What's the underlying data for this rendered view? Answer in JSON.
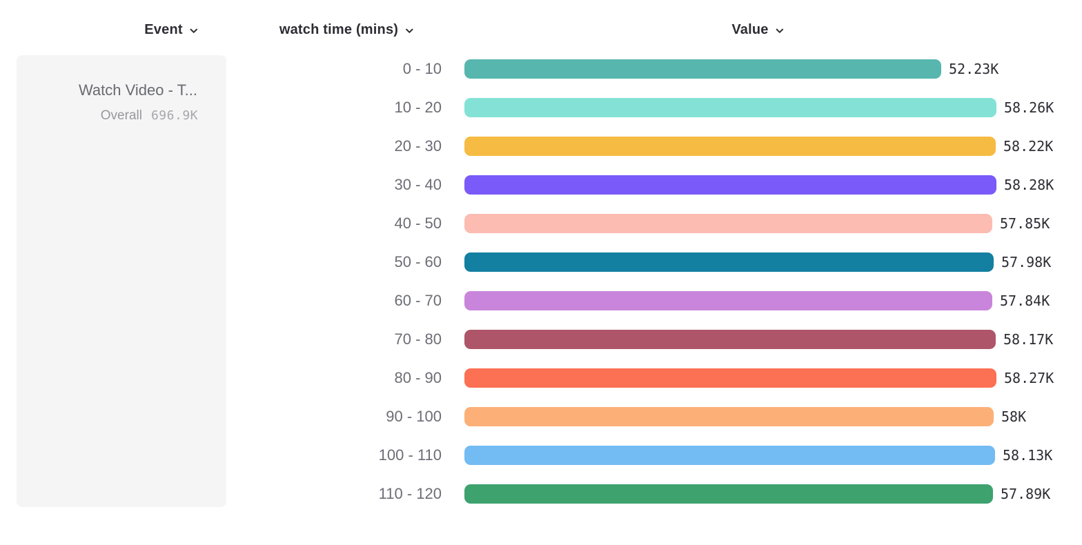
{
  "header": {
    "event": {
      "label": "Event"
    },
    "breakdown": {
      "label": "watch time (mins)"
    },
    "value": {
      "label": "Value"
    }
  },
  "legend": {
    "event_title": "Watch Video - T...",
    "overall_label": "Overall",
    "overall_value": "696.9K"
  },
  "chart_data": {
    "type": "bar",
    "orientation": "horizontal",
    "title": "",
    "xlabel": "Value",
    "ylabel": "watch time (mins)",
    "xlim": [
      0,
      58280
    ],
    "grid": false,
    "legend_position": "left",
    "categories": [
      "0 - 10",
      "10 - 20",
      "20 - 30",
      "30 - 40",
      "40 - 50",
      "50 - 60",
      "60 - 70",
      "70 - 80",
      "80 - 90",
      "90 - 100",
      "100 - 110",
      "110 - 120"
    ],
    "values": [
      52230,
      58260,
      58220,
      58280,
      57850,
      57980,
      57840,
      58170,
      58270,
      58000,
      58130,
      57890
    ],
    "value_labels": [
      "52.23K",
      "58.26K",
      "58.22K",
      "58.28K",
      "57.85K",
      "57.98K",
      "57.84K",
      "58.17K",
      "58.27K",
      "58K",
      "58.13K",
      "57.89K"
    ],
    "colors": [
      "#57B6AE",
      "#83E2D5",
      "#F6BB42",
      "#7A5AF8",
      "#FCBCB1",
      "#137FA1",
      "#C985DB",
      "#AF5569",
      "#FC7053",
      "#FCB078",
      "#72BBF3",
      "#3EA26F"
    ]
  },
  "colors": {
    "header_text": "#2C2C33",
    "category_text": "#6C6C75",
    "value_text": "#2C2C33",
    "card_bg": "#F5F5F6",
    "card_title_text": "#696971",
    "card_overall_text": "#97979D",
    "card_value_text": "#A7A7AD"
  }
}
